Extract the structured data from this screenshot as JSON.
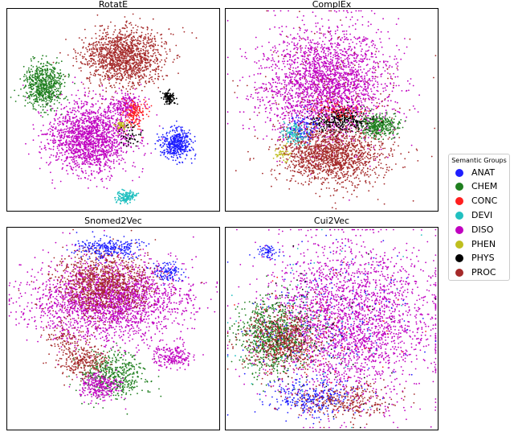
{
  "chart_data": [
    {
      "type": "scatter",
      "title": "RotatE",
      "clusters": [
        {
          "group": "PROC",
          "cx": 0.55,
          "cy": 0.24,
          "rx": 0.19,
          "ry": 0.14,
          "n": 1400
        },
        {
          "group": "DISO",
          "cx": 0.39,
          "cy": 0.64,
          "rx": 0.2,
          "ry": 0.17,
          "n": 1700
        },
        {
          "group": "DISO",
          "cx": 0.56,
          "cy": 0.48,
          "rx": 0.08,
          "ry": 0.06,
          "n": 200
        },
        {
          "group": "CHEM",
          "cx": 0.17,
          "cy": 0.38,
          "rx": 0.09,
          "ry": 0.11,
          "n": 650
        },
        {
          "group": "ANAT",
          "cx": 0.8,
          "cy": 0.67,
          "rx": 0.07,
          "ry": 0.07,
          "n": 450
        },
        {
          "group": "DEVI",
          "cx": 0.56,
          "cy": 0.93,
          "rx": 0.05,
          "ry": 0.03,
          "n": 150
        },
        {
          "group": "CONC",
          "cx": 0.6,
          "cy": 0.52,
          "rx": 0.06,
          "ry": 0.07,
          "n": 160
        },
        {
          "group": "PHYS",
          "cx": 0.76,
          "cy": 0.44,
          "rx": 0.03,
          "ry": 0.03,
          "n": 120
        },
        {
          "group": "PHEN",
          "cx": 0.54,
          "cy": 0.58,
          "rx": 0.03,
          "ry": 0.02,
          "n": 50
        },
        {
          "group": "PHYS",
          "cx": 0.58,
          "cy": 0.63,
          "rx": 0.06,
          "ry": 0.06,
          "n": 50
        }
      ]
    },
    {
      "type": "scatter",
      "title": "ComplEx",
      "clusters": [
        {
          "group": "DISO",
          "cx": 0.47,
          "cy": 0.38,
          "rx": 0.3,
          "ry": 0.28,
          "n": 2600
        },
        {
          "group": "PROC",
          "cx": 0.5,
          "cy": 0.72,
          "rx": 0.24,
          "ry": 0.14,
          "n": 1500
        },
        {
          "group": "CHEM",
          "cx": 0.72,
          "cy": 0.58,
          "rx": 0.09,
          "ry": 0.06,
          "n": 350
        },
        {
          "group": "PHYS",
          "cx": 0.54,
          "cy": 0.55,
          "rx": 0.13,
          "ry": 0.06,
          "n": 300
        },
        {
          "group": "DEVI",
          "cx": 0.33,
          "cy": 0.62,
          "rx": 0.06,
          "ry": 0.05,
          "n": 140
        },
        {
          "group": "ANAT",
          "cx": 0.37,
          "cy": 0.58,
          "rx": 0.08,
          "ry": 0.06,
          "n": 80
        },
        {
          "group": "CONC",
          "cx": 0.55,
          "cy": 0.5,
          "rx": 0.14,
          "ry": 0.06,
          "n": 90
        },
        {
          "group": "PHEN",
          "cx": 0.27,
          "cy": 0.72,
          "rx": 0.04,
          "ry": 0.04,
          "n": 40
        },
        {
          "group": "PROC",
          "cx": 0.5,
          "cy": 0.5,
          "rx": 0.4,
          "ry": 0.38,
          "n": 220
        }
      ]
    },
    {
      "type": "scatter",
      "title": "Snomed2Vec",
      "clusters": [
        {
          "group": "DISO",
          "cx": 0.48,
          "cy": 0.36,
          "rx": 0.36,
          "ry": 0.2,
          "n": 2300
        },
        {
          "group": "PROC",
          "cx": 0.46,
          "cy": 0.28,
          "rx": 0.22,
          "ry": 0.16,
          "n": 1000
        },
        {
          "group": "ANAT",
          "cx": 0.48,
          "cy": 0.1,
          "rx": 0.16,
          "ry": 0.05,
          "n": 260
        },
        {
          "group": "ANAT",
          "cx": 0.76,
          "cy": 0.22,
          "rx": 0.07,
          "ry": 0.05,
          "n": 110
        },
        {
          "group": "CHEM",
          "cx": 0.5,
          "cy": 0.73,
          "rx": 0.16,
          "ry": 0.12,
          "n": 480
        },
        {
          "group": "DISO",
          "cx": 0.44,
          "cy": 0.78,
          "rx": 0.1,
          "ry": 0.07,
          "n": 260
        },
        {
          "group": "PROC",
          "cx": 0.36,
          "cy": 0.66,
          "rx": 0.12,
          "ry": 0.08,
          "n": 260
        },
        {
          "group": "DISO",
          "cx": 0.78,
          "cy": 0.64,
          "rx": 0.09,
          "ry": 0.06,
          "n": 200
        },
        {
          "group": "PROC",
          "cx": 0.28,
          "cy": 0.55,
          "rx": 0.1,
          "ry": 0.08,
          "n": 100
        }
      ]
    },
    {
      "type": "scatter",
      "title": "Cui2Vec",
      "clusters": [
        {
          "group": "DISO",
          "cx": 0.58,
          "cy": 0.46,
          "rx": 0.4,
          "ry": 0.4,
          "n": 2600
        },
        {
          "group": "CHEM",
          "cx": 0.22,
          "cy": 0.54,
          "rx": 0.16,
          "ry": 0.18,
          "n": 800
        },
        {
          "group": "PROC",
          "cx": 0.28,
          "cy": 0.56,
          "rx": 0.2,
          "ry": 0.16,
          "n": 600
        },
        {
          "group": "ANAT",
          "cx": 0.4,
          "cy": 0.84,
          "rx": 0.2,
          "ry": 0.09,
          "n": 300
        },
        {
          "group": "PROC",
          "cx": 0.56,
          "cy": 0.86,
          "rx": 0.22,
          "ry": 0.08,
          "n": 300
        },
        {
          "group": "ANAT",
          "cx": 0.48,
          "cy": 0.48,
          "rx": 0.4,
          "ry": 0.4,
          "n": 180
        },
        {
          "group": "DEVI",
          "cx": 0.45,
          "cy": 0.5,
          "rx": 0.4,
          "ry": 0.4,
          "n": 90
        },
        {
          "group": "PHYS",
          "cx": 0.45,
          "cy": 0.5,
          "rx": 0.4,
          "ry": 0.4,
          "n": 80
        },
        {
          "group": "CONC",
          "cx": 0.45,
          "cy": 0.5,
          "rx": 0.4,
          "ry": 0.4,
          "n": 60
        },
        {
          "group": "ANAT",
          "cx": 0.2,
          "cy": 0.12,
          "rx": 0.05,
          "ry": 0.03,
          "n": 60
        }
      ]
    }
  ],
  "legend": {
    "title": "Semantic Groups",
    "placement": "right",
    "items": [
      {
        "label": "ANAT",
        "color": "#1f1fff"
      },
      {
        "label": "CHEM",
        "color": "#1f7f1f"
      },
      {
        "label": "CONC",
        "color": "#ff1f1f"
      },
      {
        "label": "DEVI",
        "color": "#21c0c0"
      },
      {
        "label": "DISO",
        "color": "#c000c0"
      },
      {
        "label": "PHEN",
        "color": "#bfbf1f"
      },
      {
        "label": "PHYS",
        "color": "#000000"
      },
      {
        "label": "PROC",
        "color": "#a52a2a"
      }
    ]
  }
}
